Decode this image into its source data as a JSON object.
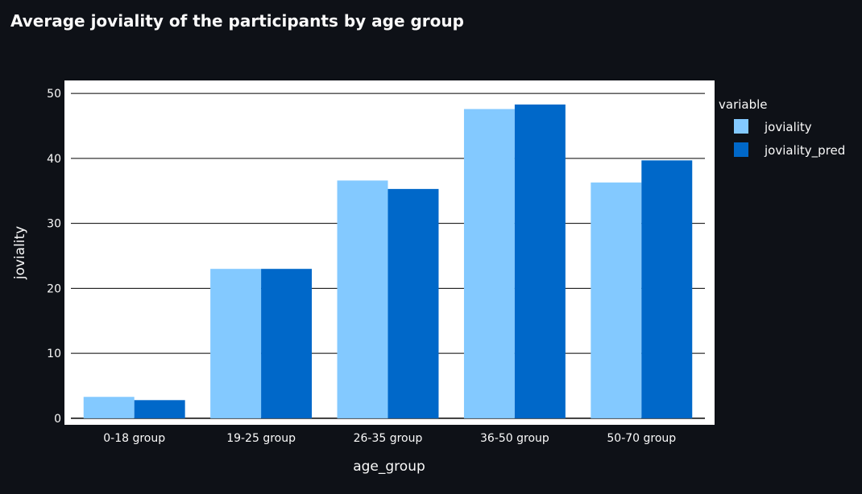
{
  "chart_data": {
    "type": "bar",
    "title": "Average joviality of the participants by age group",
    "xlabel": "age_group",
    "ylabel": "joviality",
    "categories": [
      "0-18 group",
      "19-25 group",
      "26-35 group",
      "36-50 group",
      "50-70 group"
    ],
    "series": [
      {
        "name": "joviality",
        "values": [
          3.3,
          23.0,
          36.6,
          47.6,
          36.3
        ],
        "color": "#83c9ff"
      },
      {
        "name": "joviality_pred",
        "values": [
          2.8,
          23.0,
          35.3,
          48.3,
          39.7
        ],
        "color": "#0068c9"
      }
    ],
    "ylim": [
      -1,
      52
    ],
    "yticks": [
      0,
      10,
      20,
      30,
      40,
      50
    ],
    "grid": true,
    "legend_title": "variable",
    "legend_position": "right"
  }
}
